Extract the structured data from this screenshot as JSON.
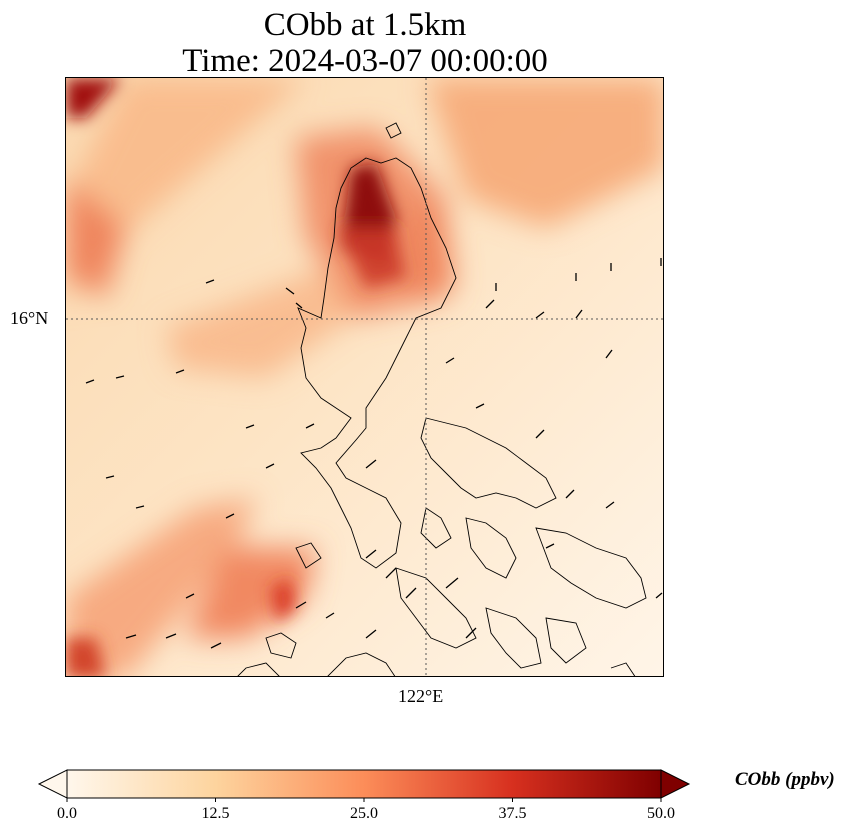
{
  "title": {
    "line1": "CObb at 1.5km",
    "line2": "Time: 2024-03-07 00:00:00"
  },
  "map": {
    "lat_tick_label": "16°N",
    "lon_tick_label": "122°E",
    "gridlines": "dotted",
    "coastlines": true,
    "wind_arrows": true
  },
  "colorbar": {
    "label": "CObb (ppbv)",
    "ticks": [
      "0.0",
      "12.5",
      "25.0",
      "37.5",
      "50.0"
    ],
    "min": 0,
    "max": 50,
    "colormap": "OrRd",
    "colors": [
      "#fff7ec",
      "#fdd49e",
      "#fc8d59",
      "#d7301f",
      "#7f0000"
    ]
  }
}
